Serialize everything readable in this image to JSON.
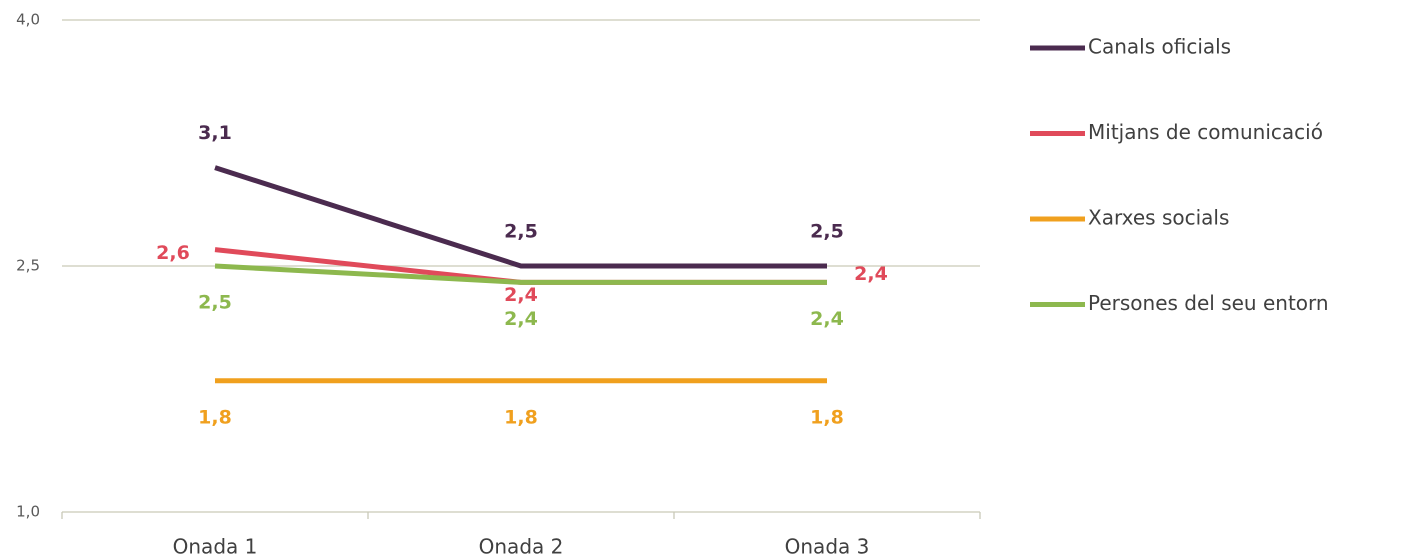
{
  "chart_data": {
    "type": "line",
    "categories": [
      "Onada 1",
      "Onada 2",
      "Onada 3"
    ],
    "series": [
      {
        "name": "Canals oficials",
        "color": "#4b2b4f",
        "values": [
          3.1,
          2.5,
          2.5
        ],
        "value_labels": [
          "3,1",
          "2,5",
          "2,5"
        ]
      },
      {
        "name": "Mitjans de comunicació",
        "color": "#e04a5a",
        "values": [
          2.6,
          2.4,
          2.4
        ],
        "value_labels": [
          "2,6",
          "2,4",
          "2,4"
        ]
      },
      {
        "name": "Xarxes socials",
        "color": "#f0a01e",
        "values": [
          1.8,
          1.8,
          1.8
        ],
        "value_labels": [
          "1,8",
          "1,8",
          "1,8"
        ]
      },
      {
        "name": "Persones del seu entorn",
        "color": "#8db84e",
        "values": [
          2.5,
          2.4,
          2.4
        ],
        "value_labels": [
          "2,5",
          "2,4",
          "2,4"
        ]
      }
    ],
    "ylim": [
      1.0,
      4.0
    ],
    "yticks": [
      {
        "value": 1.0,
        "label": "1,0"
      },
      {
        "value": 2.5,
        "label": "2,5"
      },
      {
        "value": 4.0,
        "label": "4,0"
      }
    ],
    "grid": true,
    "legend": "right"
  }
}
